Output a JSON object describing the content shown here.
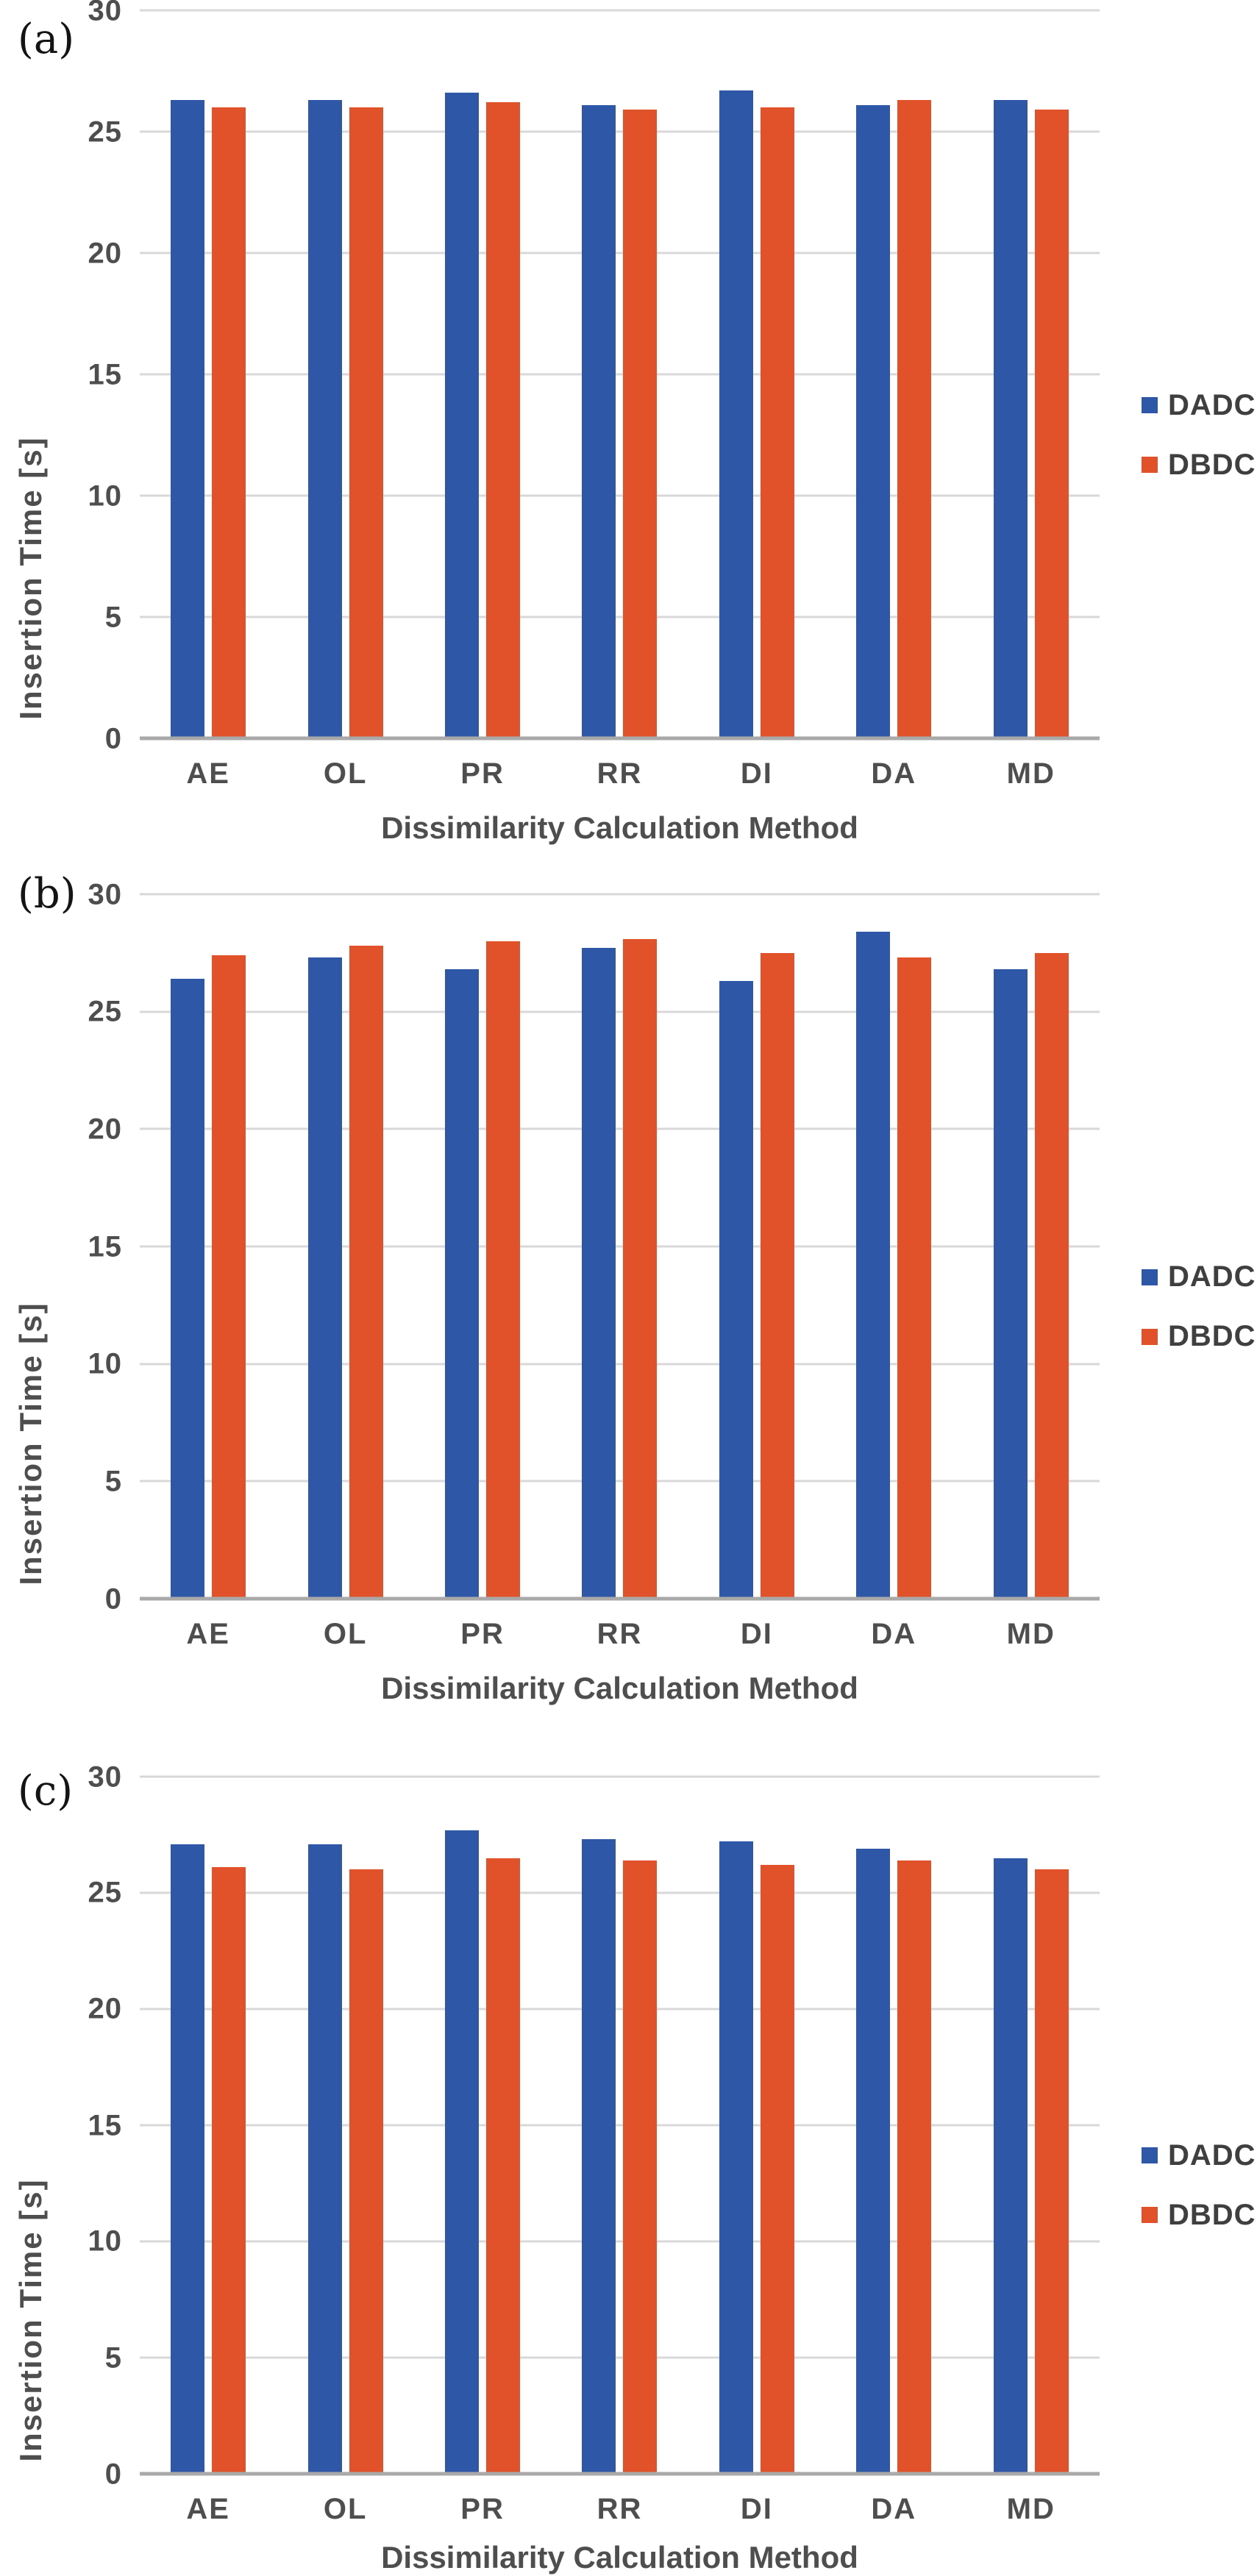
{
  "figure": {
    "panel_labels": [
      "(a)",
      "(b)",
      "(c)"
    ]
  },
  "colors": {
    "dadc_blue": "#2F57A8",
    "dbdc_orange": "#E2522A",
    "gridline": "#D8D8D8",
    "zero_axis": "#A9A9A9",
    "axis_text": "#4E4E4E",
    "legend_text": "#3F3F3F"
  },
  "legend": {
    "items": [
      {
        "label": "DADC",
        "color": "#2F57A8"
      },
      {
        "label": "DBDC",
        "color": "#E2522A"
      }
    ],
    "position": "right"
  },
  "chart_data": [
    {
      "type": "bar",
      "panel_label": "(a)",
      "title": "",
      "categories": [
        "AE",
        "OL",
        "PR",
        "RR",
        "DI",
        "DA",
        "MD"
      ],
      "series": [
        {
          "name": "DADC",
          "color": "#2F57A8",
          "values": [
            26.3,
            26.3,
            26.6,
            26.1,
            26.7,
            26.1,
            26.3
          ]
        },
        {
          "name": "DBDC",
          "color": "#E2522A",
          "values": [
            26.0,
            26.0,
            26.2,
            25.9,
            26.0,
            26.3,
            25.9
          ]
        }
      ],
      "xlabel": "Dissimilarity Calculation Method",
      "ylabel": "Insertion Time [s]",
      "ylim": [
        0,
        30
      ],
      "yticks": [
        30,
        25,
        20,
        15,
        10,
        5,
        0
      ],
      "grid": "horizontal",
      "legend_position": "right"
    },
    {
      "type": "bar",
      "panel_label": "(b)",
      "title": "",
      "categories": [
        "AE",
        "OL",
        "PR",
        "RR",
        "DI",
        "DA",
        "MD"
      ],
      "series": [
        {
          "name": "DADC",
          "color": "#2F57A8",
          "values": [
            26.4,
            27.3,
            26.8,
            27.7,
            26.3,
            28.4,
            26.8
          ]
        },
        {
          "name": "DBDC",
          "color": "#E2522A",
          "values": [
            27.4,
            27.8,
            28.0,
            28.1,
            27.5,
            27.3,
            27.5
          ]
        }
      ],
      "xlabel": "Dissimilarity Calculation Method",
      "ylabel": "Insertion Time [s]",
      "ylim": [
        0,
        30
      ],
      "yticks": [
        30,
        25,
        20,
        15,
        10,
        5,
        0
      ],
      "grid": "horizontal",
      "legend_position": "right"
    },
    {
      "type": "bar",
      "panel_label": "(c)",
      "title": "",
      "categories": [
        "AE",
        "OL",
        "PR",
        "RR",
        "DI",
        "DA",
        "MD"
      ],
      "series": [
        {
          "name": "DADC",
          "color": "#2F57A8",
          "values": [
            27.1,
            27.1,
            27.7,
            27.3,
            27.2,
            26.9,
            26.5
          ]
        },
        {
          "name": "DBDC",
          "color": "#E2522A",
          "values": [
            26.1,
            26.0,
            26.5,
            26.4,
            26.2,
            26.4,
            26.0
          ]
        }
      ],
      "xlabel": "Dissimilarity Calculation Method",
      "ylabel": "Insertion Time [s]",
      "ylim": [
        0,
        30
      ],
      "yticks": [
        30,
        25,
        20,
        15,
        10,
        5,
        0
      ],
      "grid": "horizontal",
      "legend_position": "right"
    }
  ]
}
